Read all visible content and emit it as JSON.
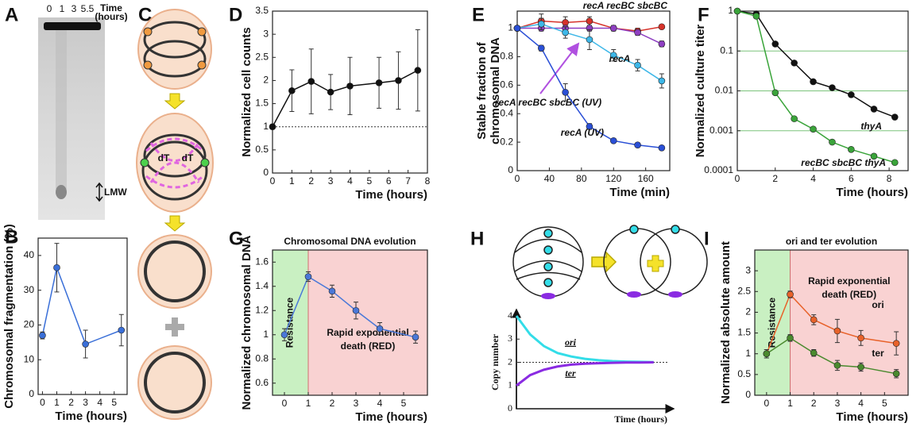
{
  "panel_labels": [
    "A",
    "B",
    "C",
    "D",
    "E",
    "F",
    "G",
    "H",
    "I"
  ],
  "gel": {
    "lanes": [
      "0",
      "1",
      "3",
      "5.5"
    ],
    "time_label": [
      "Time",
      "(hours)"
    ],
    "marker": "LMW"
  },
  "diagram_c": {
    "labels": [
      "dT",
      "dT"
    ]
  },
  "chart_data": [
    {
      "type": "line",
      "x": [
        0,
        1,
        3,
        5.5
      ],
      "xlim": [
        -0.3,
        5.9
      ],
      "xticks": [
        0,
        1,
        2,
        3,
        4,
        5
      ],
      "ylim": [
        0,
        45
      ],
      "yticks": [
        0,
        10,
        20,
        30,
        40
      ],
      "xlabel": "Time (hours)",
      "ylabel": "Chromosomal fragmentation (%)",
      "series": [
        {
          "color": "#3a6fd8",
          "values": [
            17,
            36.5,
            14.5,
            18.5
          ],
          "errors": [
            1,
            7,
            4,
            4.5
          ]
        }
      ]
    },
    {
      "type": "line",
      "x": [
        0,
        1,
        2,
        3,
        4,
        5.5,
        6.5,
        7.5
      ],
      "xlim": [
        0,
        8
      ],
      "xticks": [
        0,
        1,
        2,
        3,
        4,
        5,
        6,
        7,
        8
      ],
      "ylim": [
        0,
        3.5
      ],
      "yticks": [
        0,
        0.5,
        1,
        1.5,
        2,
        2.5,
        3,
        3.5
      ],
      "xlabel": "Time (hours)",
      "ylabel": "Normalized cell counts",
      "hline": 1,
      "series": [
        {
          "color": "#111111",
          "values": [
            1,
            1.78,
            1.98,
            1.75,
            1.88,
            1.95,
            2.0,
            2.22
          ],
          "errors": [
            0.05,
            0.45,
            0.7,
            0.38,
            0.62,
            0.55,
            0.62,
            0.88
          ]
        }
      ]
    },
    {
      "type": "line",
      "x": [
        0,
        30,
        60,
        90,
        120,
        150,
        180
      ],
      "xlim": [
        0,
        190
      ],
      "xticks": [
        0,
        40,
        80,
        120,
        160
      ],
      "ylim": [
        0,
        1.12
      ],
      "yticks": [
        0,
        0.2,
        0.4,
        0.6,
        0.8,
        1
      ],
      "xlabel": "Time (min)",
      "ylabel": [
        "Stable fraction of",
        "chromosomal DNA"
      ],
      "series": [
        {
          "name": "recA recBC sbcBC",
          "color": "#d6332b",
          "values": [
            1,
            1.05,
            1.04,
            1.05,
            1.0,
            0.98,
            1.01
          ],
          "errors": [
            0,
            0.05,
            0.04,
            0.03,
            0.02,
            0.02,
            0.01
          ]
        },
        {
          "name": "recA recBC sbcBC (UV)",
          "color": "#8e3fc1",
          "values": [
            1,
            1.0,
            1.0,
            1.0,
            1.0,
            0.97,
            0.89
          ],
          "errors": [
            0,
            0.02,
            0.02,
            0.02,
            0.01,
            0.02,
            0.02
          ]
        },
        {
          "name": "recA",
          "color": "#3db7e8",
          "values": [
            1,
            1.03,
            0.97,
            0.92,
            0.81,
            0.74,
            0.63
          ],
          "errors": [
            0,
            0.04,
            0.04,
            0.07,
            0.04,
            0.04,
            0.05
          ]
        },
        {
          "name": "recA (UV)",
          "color": "#2a4fd6",
          "values": [
            1,
            0.86,
            0.55,
            0.31,
            0.21,
            0.18,
            0.16
          ],
          "errors": [
            0,
            0.02,
            0.06,
            0.02,
            0.01,
            0.01,
            0.01
          ]
        }
      ]
    },
    {
      "type": "line",
      "x": [
        0,
        1,
        2,
        3,
        4,
        5,
        6,
        7.2,
        8.3
      ],
      "xlim": [
        0,
        9
      ],
      "xticks": [
        0,
        2,
        4,
        6,
        8
      ],
      "log": true,
      "ylim": [
        0.0001,
        1
      ],
      "yticks": [
        0.0001,
        0.001,
        0.01,
        0.1,
        1
      ],
      "grid": true,
      "grid_color": "#7cc47c",
      "xlabel": "Time (hours)",
      "ylabel": "Normalized culture titer",
      "series": [
        {
          "name": "thyA",
          "color": "#111111",
          "values": [
            1,
            0.85,
            0.15,
            0.05,
            0.017,
            0.012,
            0.008,
            0.0035,
            0.0022
          ]
        },
        {
          "name": "recBC sbcBC thyA",
          "color": "#3aa43a",
          "values": [
            1,
            0.75,
            0.009,
            0.002,
            0.0011,
            0.00052,
            0.00034,
            0.00023,
            0.00016
          ]
        }
      ]
    },
    {
      "type": "line",
      "title": "Chromosomal DNA evolution",
      "x": [
        0,
        1,
        2,
        3,
        4,
        5.5
      ],
      "xlim": [
        -0.5,
        6
      ],
      "xticks": [
        0,
        1,
        2,
        3,
        4,
        5
      ],
      "ylim": [
        0.5,
        1.7
      ],
      "yticks": [
        0.6,
        0.8,
        1,
        1.2,
        1.4,
        1.6
      ],
      "xlabel": "Time (hours)",
      "ylabel": "Normalized chromosomal DNA",
      "regions": [
        {
          "label": [
            "Resistance"
          ],
          "color": "#c9f0c2",
          "x0": -0.5,
          "x1": 1
        },
        {
          "label": [
            "Rapid exponential",
            "death (RED)"
          ],
          "color": "#f9d2d2",
          "x0": 1,
          "x1": 6
        }
      ],
      "series": [
        {
          "color": "#4a78d8",
          "values": [
            1.0,
            1.48,
            1.36,
            1.2,
            1.05,
            0.98
          ],
          "errors": [
            0.05,
            0.04,
            0.05,
            0.07,
            0.05,
            0.05
          ]
        }
      ]
    },
    {
      "type": "line",
      "title": "ori and ter evolution",
      "x": [
        0,
        1,
        2,
        3,
        4,
        5.5
      ],
      "xlim": [
        -0.5,
        6
      ],
      "xticks": [
        0,
        1,
        2,
        3,
        4,
        5
      ],
      "ylim": [
        0,
        3.5
      ],
      "yticks": [
        0,
        0.5,
        1,
        1.5,
        2,
        2.5,
        3
      ],
      "xlabel": "Time (hours)",
      "ylabel": "Normalized absolute amount",
      "regions": [
        {
          "label": [
            "Resistance"
          ],
          "color": "#c9f0c2",
          "x0": -0.5,
          "x1": 1
        },
        {
          "label": [
            "Rapid exponential",
            "death (RED)"
          ],
          "color": "#f9d2d2",
          "x0": 1,
          "x1": 6
        }
      ],
      "series": [
        {
          "name": "ori",
          "color": "#e8622a",
          "values": [
            1,
            2.43,
            1.82,
            1.55,
            1.38,
            1.25
          ],
          "errors": [
            0.1,
            0.08,
            0.12,
            0.28,
            0.18,
            0.28
          ]
        },
        {
          "name": "ter",
          "color": "#4a8a2e",
          "values": [
            1,
            1.38,
            1.02,
            0.72,
            0.68,
            0.52
          ],
          "errors": [
            0.1,
            0.08,
            0.08,
            0.12,
            0.1,
            0.1
          ]
        }
      ]
    },
    {
      "type": "line",
      "x": [
        0,
        1,
        2,
        3,
        4,
        5,
        6,
        7,
        8,
        9,
        10
      ],
      "xlim": [
        0,
        11
      ],
      "ylim": [
        0,
        4
      ],
      "yticks": [
        0,
        1,
        2,
        3,
        4
      ],
      "hline": 2,
      "xlabel": "Time (hours)",
      "ylabel": "Copy number",
      "series": [
        {
          "name": "ori",
          "color": "#33dde8",
          "values": [
            4,
            3.2,
            2.7,
            2.4,
            2.25,
            2.15,
            2.09,
            2.05,
            2.03,
            2.02,
            2.01
          ]
        },
        {
          "name": "ter",
          "color": "#8a2be2",
          "values": [
            1,
            1.45,
            1.68,
            1.82,
            1.9,
            1.94,
            1.96,
            1.98,
            1.99,
            1.99,
            2.0
          ]
        }
      ]
    }
  ]
}
